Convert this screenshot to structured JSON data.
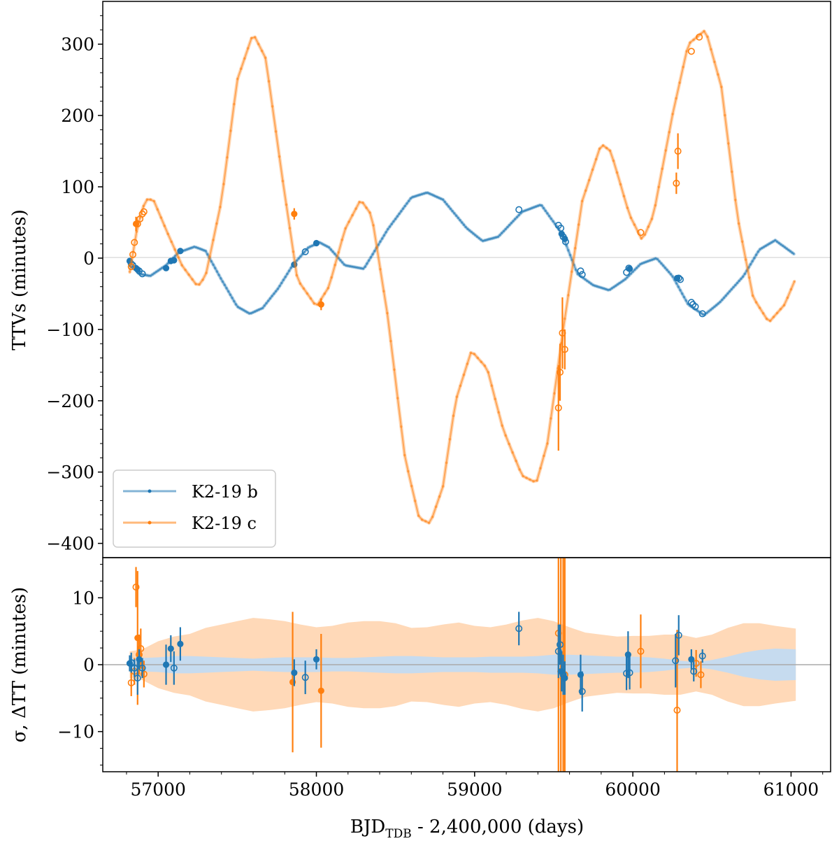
{
  "chart_data": [
    {
      "type": "line",
      "panel": "top",
      "ylabel": "TTVs (minutes)",
      "xlim": [
        56650,
        61250
      ],
      "ylim": [
        -420,
        360
      ],
      "yticks": [
        300,
        200,
        100,
        0,
        -100,
        -200,
        -300,
        -400
      ],
      "ytick_labels": [
        "300",
        "200",
        "100",
        "0",
        "−100",
        "−200",
        "−300",
        "−400"
      ],
      "legend_position": "lower-left",
      "series": [
        {
          "name": "K2-19 b",
          "label": "K2-19 b",
          "color": "#1f77b4",
          "model_points": [
            [
              56820,
              -5
            ],
            [
              56880,
              -22
            ],
            [
              56950,
              -25
            ],
            [
              57050,
              -10
            ],
            [
              57130,
              8
            ],
            [
              57230,
              16
            ],
            [
              57300,
              10
            ],
            [
              57400,
              -30
            ],
            [
              57500,
              -68
            ],
            [
              57580,
              -78
            ],
            [
              57660,
              -70
            ],
            [
              57760,
              -42
            ],
            [
              57850,
              -10
            ],
            [
              57950,
              15
            ],
            [
              58020,
              22
            ],
            [
              58080,
              15
            ],
            [
              58180,
              -10
            ],
            [
              58300,
              -15
            ],
            [
              58450,
              40
            ],
            [
              58600,
              85
            ],
            [
              58700,
              92
            ],
            [
              58800,
              82
            ],
            [
              58950,
              42
            ],
            [
              59050,
              24
            ],
            [
              59150,
              30
            ],
            [
              59300,
              65
            ],
            [
              59420,
              75
            ],
            [
              59550,
              35
            ],
            [
              59650,
              -22
            ],
            [
              59750,
              -38
            ],
            [
              59850,
              -45
            ],
            [
              59950,
              -30
            ],
            [
              60050,
              -8
            ],
            [
              60150,
              0
            ],
            [
              60250,
              -25
            ],
            [
              60350,
              -65
            ],
            [
              60450,
              -80
            ],
            [
              60550,
              -62
            ],
            [
              60700,
              -25
            ],
            [
              60800,
              12
            ],
            [
              60900,
              25
            ],
            [
              61030,
              4
            ]
          ],
          "observed_open": [
            [
              56830,
              -8
            ],
            [
              56840,
              -10
            ],
            [
              56880,
              -18
            ],
            [
              56900,
              -22
            ],
            [
              57930,
              9
            ],
            [
              59280,
              68
            ],
            [
              59530,
              46
            ],
            [
              59545,
              42
            ],
            [
              59560,
              30
            ],
            [
              59575,
              23
            ],
            [
              59670,
              -18
            ],
            [
              59680,
              -23
            ],
            [
              59960,
              -20
            ],
            [
              59975,
              -14
            ],
            [
              60290,
              -28
            ],
            [
              60300,
              -30
            ],
            [
              60370,
              -62
            ],
            [
              60380,
              -65
            ],
            [
              60395,
              -68
            ],
            [
              60440,
              -78
            ]
          ],
          "observed_filled": [
            [
              56820,
              -4
            ],
            [
              56860,
              -14
            ],
            [
              56870,
              -16
            ],
            [
              57050,
              -14
            ],
            [
              57080,
              -4
            ],
            [
              57100,
              -3
            ],
            [
              57140,
              10
            ],
            [
              57860,
              -9
            ],
            [
              58000,
              21
            ],
            [
              59550,
              34
            ],
            [
              59570,
              27
            ],
            [
              59980,
              -15
            ],
            [
              60280,
              -28
            ]
          ]
        },
        {
          "name": "K2-19 c",
          "label": "K2-19 c",
          "color": "#ff7f0e",
          "model_points": [
            [
              56820,
              -20
            ],
            [
              56870,
              45
            ],
            [
              56920,
              82
            ],
            [
              56970,
              82
            ],
            [
              57050,
              40
            ],
            [
              57150,
              -10
            ],
            [
              57250,
              -40
            ],
            [
              57300,
              -25
            ],
            [
              57400,
              80
            ],
            [
              57500,
              250
            ],
            [
              57600,
              315
            ],
            [
              57680,
              280
            ],
            [
              57780,
              120
            ],
            [
              57880,
              -30
            ],
            [
              58000,
              -68
            ],
            [
              58080,
              -40
            ],
            [
              58180,
              40
            ],
            [
              58280,
              82
            ],
            [
              58350,
              60
            ],
            [
              58450,
              -80
            ],
            [
              58560,
              -280
            ],
            [
              58650,
              -365
            ],
            [
              58720,
              -372
            ],
            [
              58800,
              -320
            ],
            [
              58880,
              -200
            ],
            [
              58980,
              -130
            ],
            [
              59080,
              -155
            ],
            [
              59180,
              -240
            ],
            [
              59300,
              -305
            ],
            [
              59390,
              -315
            ],
            [
              59460,
              -260
            ],
            [
              59560,
              -100
            ],
            [
              59680,
              80
            ],
            [
              59800,
              160
            ],
            [
              59860,
              150
            ],
            [
              59980,
              60
            ],
            [
              60060,
              25
            ],
            [
              60130,
              60
            ],
            [
              60250,
              200
            ],
            [
              60350,
              300
            ],
            [
              60460,
              320
            ],
            [
              60560,
              240
            ],
            [
              60660,
              60
            ],
            [
              60760,
              -55
            ],
            [
              60860,
              -90
            ],
            [
              60960,
              -65
            ],
            [
              61030,
              -28
            ]
          ],
          "observed_open": [
            [
              56830,
              -12
            ],
            [
              56840,
              5
            ],
            [
              56850,
              22
            ],
            [
              56870,
              48
            ],
            [
              56885,
              55
            ],
            [
              56900,
              62
            ],
            [
              56910,
              65
            ],
            [
              59530,
              -210
            ],
            [
              59540,
              -160
            ],
            [
              59555,
              -105
            ],
            [
              59570,
              -128
            ],
            [
              60050,
              36
            ],
            [
              60275,
              105
            ],
            [
              60285,
              150
            ],
            [
              60370,
              290
            ],
            [
              60420,
              310
            ]
          ],
          "observed_filled": [
            [
              56860,
              48
            ],
            [
              57860,
              62
            ],
            [
              58030,
              -65
            ]
          ],
          "errorbars": [
            [
              56860,
              48,
              10
            ],
            [
              57860,
              62,
              8
            ],
            [
              58030,
              -65,
              8
            ],
            [
              59530,
              -210,
              60
            ],
            [
              59540,
              -160,
              40
            ],
            [
              59555,
              -105,
              50
            ],
            [
              59570,
              -128,
              28
            ],
            [
              60275,
              105,
              15
            ],
            [
              60285,
              150,
              25
            ]
          ]
        }
      ]
    },
    {
      "type": "scatter",
      "panel": "bottom",
      "xlabel": "BJD",
      "xlabel_sub": "TDB",
      "xlabel_suffix": " - 2,400,000 (days)",
      "ylabel": "σ, ΔTT (minutes)",
      "xlim": [
        56650,
        61250
      ],
      "ylim": [
        -16,
        16
      ],
      "xticks": [
        57000,
        58000,
        59000,
        60000,
        61000
      ],
      "xtick_labels": [
        "57000",
        "58000",
        "59000",
        "60000",
        "61000"
      ],
      "yticks": [
        10,
        0,
        -10
      ],
      "ytick_labels": [
        "10",
        "0",
        "−10"
      ],
      "sigma_band_c": {
        "color": "#ffd9b8",
        "x": [
          56820,
          56900,
          57000,
          57100,
          57200,
          57300,
          57400,
          57500,
          57600,
          57700,
          57800,
          57900,
          58000,
          58100,
          58200,
          58300,
          58400,
          58500,
          58600,
          58700,
          58800,
          58900,
          59000,
          59100,
          59200,
          59300,
          59400,
          59500,
          59600,
          59700,
          59800,
          59900,
          60000,
          60100,
          60200,
          60300,
          60400,
          60500,
          60600,
          60700,
          60800,
          60900,
          61030
        ],
        "sigma": [
          2.0,
          2.3,
          3.5,
          4.2,
          4.6,
          5.5,
          6.0,
          6.5,
          7.0,
          6.8,
          6.5,
          6.0,
          5.6,
          5.8,
          6.3,
          6.5,
          6.5,
          6.2,
          5.5,
          5.6,
          6.0,
          6.3,
          5.8,
          5.6,
          6.0,
          6.6,
          7.0,
          6.5,
          5.6,
          4.8,
          4.5,
          4.2,
          4.3,
          4.3,
          4.5,
          4.5,
          4.0,
          4.5,
          5.5,
          6.2,
          6.2,
          5.8,
          5.4
        ]
      },
      "sigma_band_b": {
        "color": "#c6dbef",
        "x": [
          56820,
          56900,
          57000,
          57100,
          57200,
          57300,
          57400,
          57500,
          57600,
          57700,
          57800,
          57900,
          58000,
          58100,
          58200,
          58300,
          58400,
          58500,
          58600,
          58700,
          58800,
          58900,
          59000,
          59100,
          59200,
          59300,
          59400,
          59500,
          59600,
          59700,
          59800,
          59900,
          60000,
          60100,
          60200,
          60300,
          60400,
          60500,
          60600,
          60700,
          60800,
          60900,
          61030
        ],
        "sigma": [
          1.0,
          1.0,
          1.1,
          1.3,
          1.3,
          1.2,
          1.1,
          1.0,
          0.9,
          1.0,
          1.1,
          1.1,
          1.1,
          1.0,
          1.0,
          1.1,
          1.2,
          1.3,
          1.3,
          1.2,
          1.1,
          1.1,
          1.1,
          1.2,
          1.2,
          1.2,
          1.3,
          1.5,
          1.5,
          1.4,
          1.3,
          1.2,
          1.2,
          1.1,
          0.9,
          0.6,
          0.4,
          0.7,
          1.2,
          1.8,
          2.2,
          2.4,
          2.3
        ]
      },
      "residuals_b": [
        [
          56820,
          0.2,
          1.2,
          true
        ],
        [
          56830,
          0.3,
          1.5,
          false
        ],
        [
          56850,
          -0.5,
          1.3,
          false
        ],
        [
          56870,
          -2.0,
          2.5,
          false
        ],
        [
          56880,
          0.8,
          1.5,
          true
        ],
        [
          56900,
          -0.5,
          1.5,
          false
        ],
        [
          57050,
          0.0,
          3.0,
          true
        ],
        [
          57080,
          2.4,
          2.0,
          true
        ],
        [
          57100,
          -0.5,
          2.5,
          false
        ],
        [
          57140,
          3.1,
          2.5,
          true
        ],
        [
          57860,
          -1.2,
          2.0,
          true
        ],
        [
          57930,
          -1.9,
          2.5,
          false
        ],
        [
          58000,
          0.8,
          1.5,
          true
        ],
        [
          59280,
          5.4,
          2.5,
          false
        ],
        [
          59530,
          2.0,
          4.0,
          false
        ],
        [
          59540,
          3.0,
          3.0,
          false
        ],
        [
          59550,
          -1.0,
          3.0,
          true
        ],
        [
          59560,
          -1.5,
          3.0,
          false
        ],
        [
          59570,
          -2.0,
          2.5,
          true
        ],
        [
          59670,
          -1.5,
          3.0,
          true
        ],
        [
          59680,
          -4.0,
          3.0,
          false
        ],
        [
          59960,
          -1.3,
          2.5,
          false
        ],
        [
          59970,
          1.5,
          3.5,
          true
        ],
        [
          59980,
          -1.2,
          2.5,
          false
        ],
        [
          60270,
          0.6,
          4.0,
          false
        ],
        [
          60290,
          4.4,
          3.0,
          false
        ],
        [
          60370,
          0.8,
          1.5,
          true
        ],
        [
          60385,
          -1.0,
          1.5,
          false
        ],
        [
          60440,
          1.3,
          1.0,
          false
        ]
      ],
      "residuals_c": [
        [
          56830,
          -2.7,
          2.0,
          false
        ],
        [
          56850,
          -1.0,
          2.0,
          false
        ],
        [
          56860,
          11.6,
          3.0,
          false
        ],
        [
          56870,
          4.0,
          10.0,
          true
        ],
        [
          56880,
          1.5,
          3.0,
          false
        ],
        [
          56890,
          2.4,
          3.0,
          false
        ],
        [
          56910,
          -1.4,
          2.0,
          false
        ],
        [
          57850,
          -2.6,
          10.5,
          true
        ],
        [
          58030,
          -3.9,
          8.5,
          true
        ],
        [
          59530,
          4.7,
          25.0,
          false
        ],
        [
          59545,
          -1.0,
          30.0,
          false
        ],
        [
          59560,
          -2.0,
          25.0,
          false
        ],
        [
          59570,
          -1.5,
          25.0,
          false
        ],
        [
          60050,
          2.0,
          5.5,
          false
        ],
        [
          60280,
          -6.8,
          12.0,
          false
        ],
        [
          60400,
          0.2,
          2.0,
          false
        ],
        [
          60430,
          -1.5,
          2.0,
          false
        ]
      ]
    }
  ],
  "legend": {
    "entries": [
      "K2-19 b",
      "K2-19 c"
    ]
  }
}
